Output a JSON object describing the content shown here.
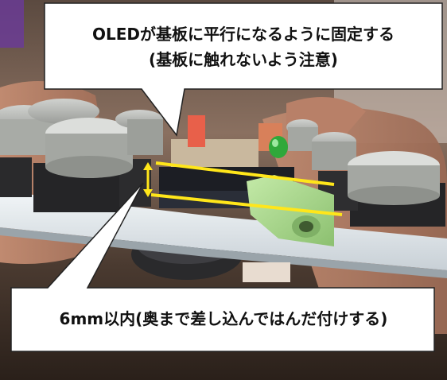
{
  "callouts": {
    "top_line1": "OLEDが基板に平行になるように固定する",
    "top_line2": "(基板に触れないよう注意)",
    "bottom": "6mm以内(奥まで差し込んではんだ付けする)"
  },
  "colors": {
    "callout_fill": "#ffffff",
    "callout_stroke": "#222222",
    "guide_line": "#ffe61a",
    "pcb": "#e8eef0",
    "keycap": "#b8bbb6",
    "switch": "#2a2a2c",
    "audio_jack": "#a9d98f",
    "led": "#2fa83a",
    "header_pin": "#e8604a"
  }
}
